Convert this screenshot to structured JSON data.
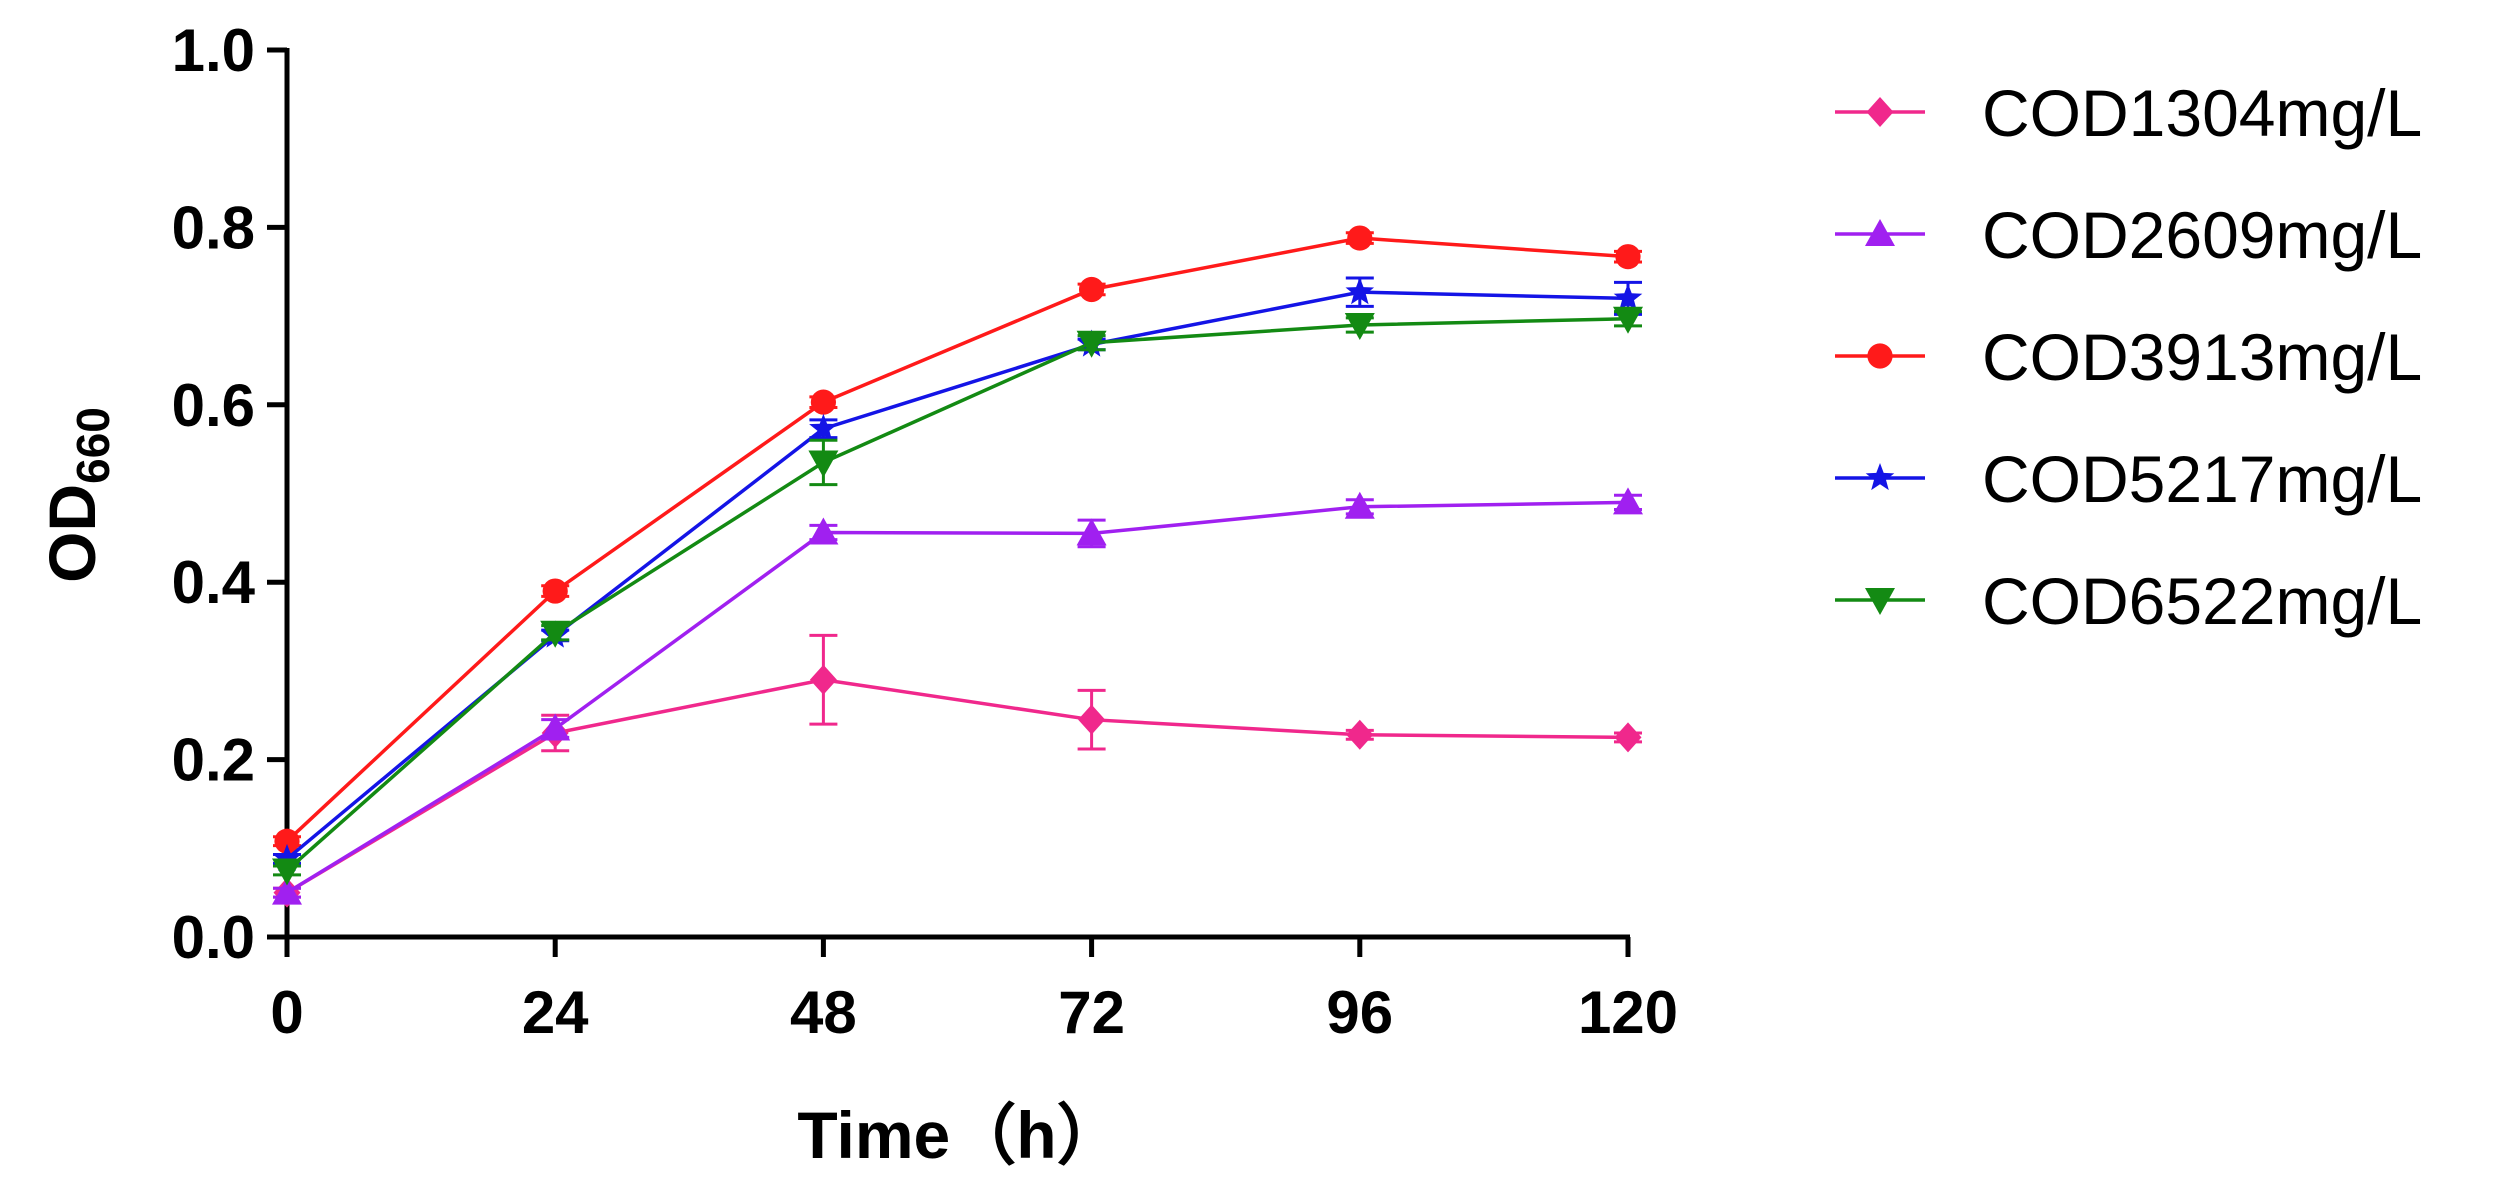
{
  "chart_data": {
    "type": "line",
    "xlabel": "Time（h）",
    "ylabel_main": "OD",
    "ylabel_sub": "660",
    "x": [
      0,
      24,
      48,
      72,
      96,
      120
    ],
    "x_ticks": [
      "0",
      "24",
      "48",
      "72",
      "96",
      "120"
    ],
    "y_ticks": [
      "0.0",
      "0.2",
      "0.4",
      "0.6",
      "0.8",
      "1.0"
    ],
    "xlim": [
      0,
      120
    ],
    "ylim": [
      0,
      1.0
    ],
    "grid": false,
    "legend_position": "right",
    "series": [
      {
        "name": "COD1304mg/L",
        "color": "#f0288c",
        "marker": "diamond",
        "values": [
          0.05,
          0.23,
          0.29,
          0.245,
          0.228,
          0.225
        ],
        "errors": [
          0.005,
          0.02,
          0.05,
          0.033,
          0.005,
          0.005
        ]
      },
      {
        "name": "COD2609mg/L",
        "color": "#a020f0",
        "marker": "triangle-up",
        "values": [
          0.05,
          0.235,
          0.456,
          0.455,
          0.485,
          0.49
        ],
        "errors": [
          0.005,
          0.01,
          0.008,
          0.015,
          0.008,
          0.008
        ]
      },
      {
        "name": "COD3913mg/L",
        "color": "#ff1a1a",
        "marker": "circle",
        "values": [
          0.108,
          0.39,
          0.603,
          0.73,
          0.788,
          0.767
        ],
        "errors": [
          0.005,
          0.006,
          0.006,
          0.006,
          0.006,
          0.006
        ]
      },
      {
        "name": "COD5217mg/L",
        "color": "#1414e6",
        "marker": "star",
        "values": [
          0.088,
          0.34,
          0.573,
          0.668,
          0.727,
          0.72
        ],
        "errors": [
          0.005,
          0.006,
          0.01,
          0.006,
          0.016,
          0.018
        ]
      },
      {
        "name": "COD6522mg/L",
        "color": "#138a13",
        "marker": "triangle-down",
        "values": [
          0.075,
          0.343,
          0.535,
          0.67,
          0.69,
          0.697
        ],
        "errors": [
          0.005,
          0.008,
          0.025,
          0.008,
          0.008,
          0.008
        ]
      }
    ]
  }
}
